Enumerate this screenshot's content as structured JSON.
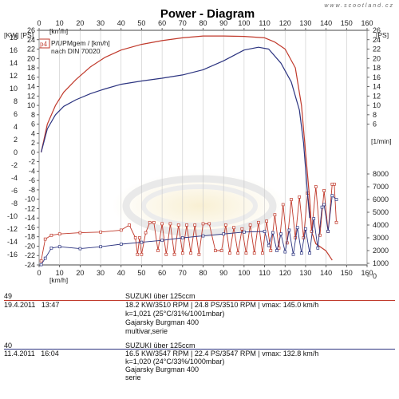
{
  "watermark": "www.scootland.cz",
  "chart_data": {
    "type": "line",
    "title": "Power - Diagram",
    "axis_units": {
      "left_kw": "[KW]",
      "left_ps": "[PS]",
      "right_ps": "[PS]",
      "top_speed": "[km/h]",
      "bottom_speed": "[km/h]",
      "right_rpm": "[1/min]"
    },
    "info_box": {
      "tag": "p4",
      "line1": "P/UPMgem / [km/h]",
      "line2": "nach DIN 70020"
    },
    "x_ticks": [
      0,
      10,
      20,
      30,
      40,
      50,
      60,
      70,
      80,
      90,
      100,
      110,
      120,
      130,
      140,
      150,
      160
    ],
    "xlim": [
      0,
      160
    ],
    "left_kw_ticks": [
      18,
      16,
      14,
      12,
      10,
      8,
      6,
      4,
      2,
      0,
      -2,
      -4,
      -6,
      -8,
      -10,
      -12,
      -14,
      -16
    ],
    "left_ps_ticks": [
      26,
      24,
      22,
      20,
      18,
      16,
      14,
      12,
      10,
      8,
      6,
      4,
      2,
      0,
      -2,
      -4,
      -6,
      -8,
      -10,
      -12,
      -14,
      -16,
      -18,
      -20,
      -22,
      -24
    ],
    "right_ps_ticks": [
      26,
      24,
      22,
      20,
      18,
      16,
      14,
      12,
      10,
      8,
      6
    ],
    "right_rpm_ticks": [
      8000,
      7000,
      6000,
      5000,
      4000,
      3000,
      2000,
      1000,
      0
    ],
    "ps_lim": [
      -24,
      26
    ],
    "series": [
      {
        "color": "#c0392b",
        "power_ps": [
          [
            1,
            0
          ],
          [
            4,
            6
          ],
          [
            8,
            10
          ],
          [
            12,
            12.8
          ],
          [
            18,
            15.5
          ],
          [
            25,
            18.2
          ],
          [
            32,
            20.2
          ],
          [
            40,
            21.8
          ],
          [
            50,
            23
          ],
          [
            60,
            23.8
          ],
          [
            70,
            24.4
          ],
          [
            80,
            24.8
          ],
          [
            90,
            24.8
          ],
          [
            100,
            24.7
          ],
          [
            110,
            24.4
          ],
          [
            115,
            23.5
          ],
          [
            120,
            22
          ],
          [
            125,
            18
          ],
          [
            128,
            10
          ],
          [
            130,
            0
          ],
          [
            132,
            -10
          ],
          [
            133,
            -17
          ],
          [
            135,
            -19.5
          ],
          [
            140,
            -21
          ],
          [
            143,
            -23
          ]
        ],
        "rpm": [
          [
            1,
            1200
          ],
          [
            3,
            2900
          ],
          [
            6,
            3200
          ],
          [
            10,
            3300
          ],
          [
            20,
            3400
          ],
          [
            30,
            3450
          ],
          [
            40,
            3600
          ],
          [
            44,
            4000
          ],
          [
            47,
            3000
          ],
          [
            48,
            1700
          ],
          [
            49,
            3000
          ],
          [
            50,
            1700
          ],
          [
            52,
            3400
          ],
          [
            54,
            4200
          ],
          [
            56,
            4200
          ],
          [
            58,
            2000
          ],
          [
            60,
            4100
          ],
          [
            62,
            1700
          ],
          [
            64,
            4100
          ],
          [
            66,
            1700
          ],
          [
            68,
            4000
          ],
          [
            70,
            1800
          ],
          [
            72,
            4000
          ],
          [
            74,
            1800
          ],
          [
            76,
            4000
          ],
          [
            78,
            1700
          ],
          [
            80,
            4100
          ],
          [
            83,
            4100
          ],
          [
            86,
            2000
          ],
          [
            89,
            2000
          ],
          [
            91,
            4000
          ],
          [
            93,
            1800
          ],
          [
            95,
            3800
          ],
          [
            97,
            1800
          ],
          [
            99,
            3700
          ],
          [
            101,
            1800
          ],
          [
            103,
            4000
          ],
          [
            105,
            1800
          ],
          [
            107,
            4200
          ],
          [
            109,
            1800
          ],
          [
            111,
            4300
          ],
          [
            113,
            2000
          ],
          [
            115,
            4800
          ],
          [
            117,
            2200
          ],
          [
            119,
            5600
          ],
          [
            121,
            2600
          ],
          [
            123,
            6000
          ],
          [
            125,
            3000
          ],
          [
            127,
            6200
          ],
          [
            129,
            3000
          ],
          [
            131,
            6500
          ],
          [
            133,
            3500
          ],
          [
            135,
            7000
          ],
          [
            137,
            3200
          ],
          [
            139,
            6700
          ],
          [
            141,
            3500
          ],
          [
            143,
            7200
          ],
          [
            144,
            7200
          ],
          [
            145,
            4200
          ]
        ]
      },
      {
        "color": "#2c3480",
        "power_ps": [
          [
            1,
            0
          ],
          [
            4,
            5
          ],
          [
            8,
            8
          ],
          [
            12,
            9.8
          ],
          [
            18,
            11.2
          ],
          [
            25,
            12.5
          ],
          [
            32,
            13.5
          ],
          [
            40,
            14.5
          ],
          [
            50,
            15.2
          ],
          [
            60,
            15.8
          ],
          [
            70,
            16.5
          ],
          [
            80,
            17.6
          ],
          [
            90,
            19.5
          ],
          [
            100,
            21.8
          ],
          [
            107,
            22.4
          ],
          [
            112,
            22
          ],
          [
            118,
            19
          ],
          [
            123,
            15
          ],
          [
            127,
            9
          ],
          [
            129,
            2
          ],
          [
            131,
            -9
          ],
          [
            132,
            -14
          ]
        ],
        "rpm": [
          [
            1,
            900
          ],
          [
            3,
            1400
          ],
          [
            6,
            2200
          ],
          [
            10,
            2300
          ],
          [
            20,
            2150
          ],
          [
            30,
            2300
          ],
          [
            40,
            2500
          ],
          [
            50,
            2650
          ],
          [
            60,
            2800
          ],
          [
            70,
            3000
          ],
          [
            80,
            3150
          ],
          [
            90,
            3300
          ],
          [
            100,
            3450
          ],
          [
            110,
            3500
          ],
          [
            112,
            2400
          ],
          [
            114,
            3400
          ],
          [
            116,
            2000
          ],
          [
            118,
            3300
          ],
          [
            120,
            1900
          ],
          [
            122,
            3600
          ],
          [
            124,
            1700
          ],
          [
            126,
            3800
          ],
          [
            128,
            1800
          ],
          [
            130,
            3700
          ],
          [
            132,
            1800
          ],
          [
            134,
            4500
          ],
          [
            136,
            2200
          ],
          [
            138,
            5400
          ],
          [
            139,
            5600
          ],
          [
            141,
            3500
          ],
          [
            143,
            6300
          ],
          [
            145,
            6000
          ]
        ]
      }
    ]
  },
  "runs": [
    {
      "color": "#c0392b",
      "id": "49",
      "date": "19.4.2011",
      "time": "13:47",
      "lines": [
        "SUZUKI über 125ccm",
        "18.2 KW/3510 RPM  |  24.8 PS/3510 RPM  |  vmax: 145.0 km/h",
        "k=1,021 (25°C/31%/1001mbar)",
        "Gajarsky Burgman 400",
        "multivar,serie"
      ]
    },
    {
      "color": "#2c3480",
      "id": "40",
      "date": "11.4.2011",
      "time": "16:04",
      "lines": [
        "SUZUKI über 125ccm",
        "16.5 KW/3547 RPM  |  22.4 PS/3547 RPM  |  vmax: 132.8 km/h",
        "k=1,020 (24°C/33%/1000mbar)",
        "Gajarsky  Burgman 400",
        "serie"
      ]
    }
  ]
}
